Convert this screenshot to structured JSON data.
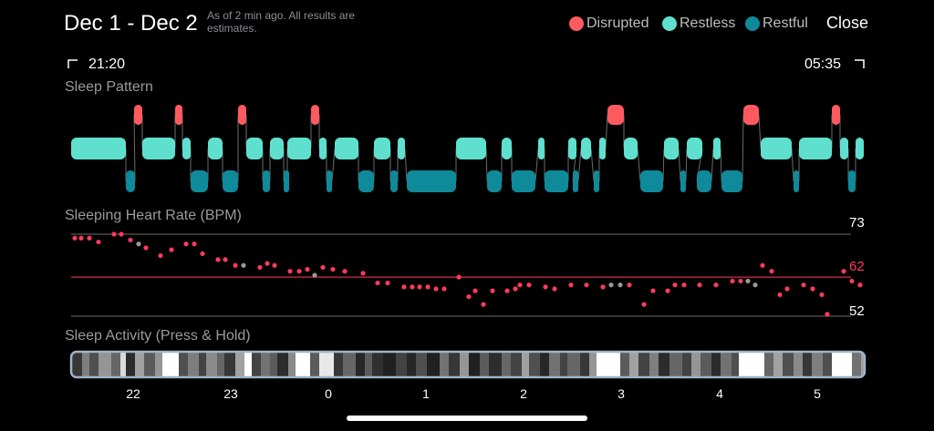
{
  "header": {
    "title": "Dec 1 - Dec 2",
    "subtitle": "As of 2 min ago. All results are estimates.",
    "close_label": "Close"
  },
  "legend": [
    {
      "label": "Disrupted",
      "color": "#ff5a5f"
    },
    {
      "label": "Restless",
      "color": "#5fe0cf"
    },
    {
      "label": "Restful",
      "color": "#0e8a9a"
    }
  ],
  "time_range": {
    "start": "21:20",
    "end": "05:35"
  },
  "sections": {
    "sleep_pattern": "Sleep Pattern",
    "heart_rate": "Sleeping Heart Rate (BPM)",
    "activity": "Sleep Activity (Press & Hold)"
  },
  "heart_rate": {
    "max": "73",
    "avg": "62",
    "min": "52"
  },
  "axis_ticks": [
    "22",
    "23",
    "0",
    "1",
    "2",
    "3",
    "4",
    "5"
  ],
  "colors": {
    "disrupted": "#ff5a5f",
    "restless": "#5fe0cf",
    "restful": "#0e8a9a",
    "hr_point": "#ff3b5c",
    "hr_missing": "#9a9a9a"
  }
}
